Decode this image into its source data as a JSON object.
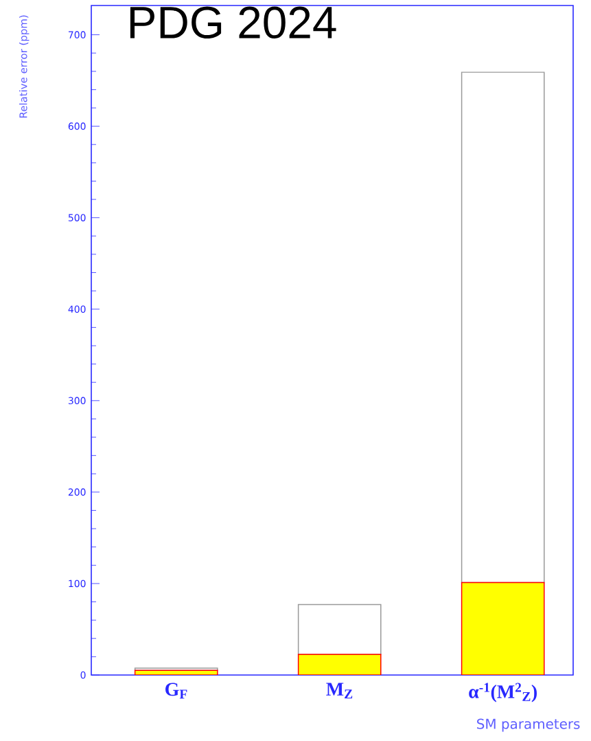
{
  "chart_data": {
    "type": "bar",
    "title": "PDG 2024",
    "xlabel": "SM parameters",
    "ylabel": "Relative error (ppm)",
    "categories": [
      "G$_{F}$",
      "M$_{Z}$",
      "α$^{-1}$(M$^{2}$$_{Z}$)"
    ],
    "stacked": true,
    "series": [
      {
        "color": "#ffff00",
        "values": [
          5,
          22.5,
          101
        ]
      },
      {
        "color": "#ffffff",
        "values": [
          2.5,
          54.5,
          558
        ]
      }
    ],
    "ylim": [
      0,
      732
    ],
    "yticks": [
      0,
      100,
      200,
      300,
      400,
      500,
      600,
      700
    ]
  }
}
